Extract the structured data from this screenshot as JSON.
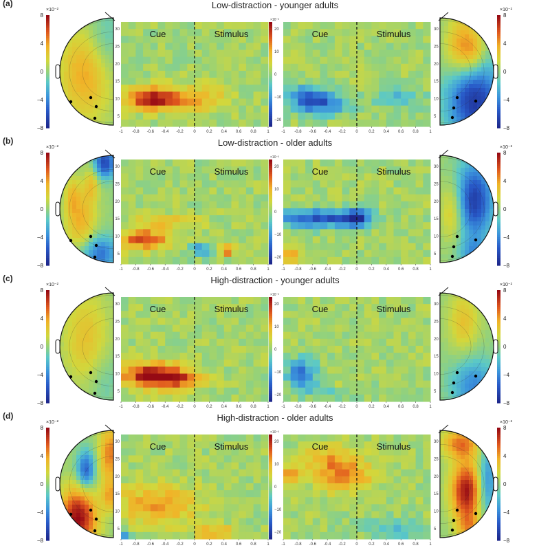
{
  "chart_data": [
    {
      "type": "heatmap",
      "panel_label": "(a)",
      "title": "Low-distraction - younger adults",
      "scalp_colorbar": {
        "ticks": [
          "8",
          "4",
          "0",
          "−4",
          "−8"
        ],
        "multiplier": "×10⁻²"
      },
      "tf_colorbar": {
        "ticks": [
          "20",
          "10",
          "0",
          "−10",
          "−20"
        ],
        "multiplier": "×10⁻³"
      },
      "tf_plots": [
        {
          "phase_labels": [
            "Cue",
            "Stimulus"
          ],
          "pattern": "alpha_increase"
        },
        {
          "phase_labels": [
            "Cue",
            "Stimulus"
          ],
          "pattern": "alpha_decrease"
        }
      ],
      "scalp_left": "posterior_left_negative",
      "scalp_right": "posterior_right_negative"
    },
    {
      "type": "heatmap",
      "panel_label": "(b)",
      "title": "Low-distraction - older adults",
      "scalp_colorbar": {
        "ticks": [
          "8",
          "4",
          "0",
          "−4",
          "−8"
        ],
        "multiplier": "×10⁻²"
      },
      "tf_colorbar": {
        "ticks": [
          "20",
          "10",
          "0",
          "−10",
          "−20"
        ],
        "multiplier": "×10⁻³"
      },
      "tf_plots": [
        {
          "phase_labels": [
            "Cue",
            "Stimulus"
          ],
          "pattern": "mixed_positive"
        },
        {
          "phase_labels": [
            "Cue",
            "Stimulus"
          ],
          "pattern": "mixed_negative"
        }
      ],
      "scalp_left": "mixed_left",
      "scalp_right": "mixed_right"
    },
    {
      "type": "heatmap",
      "panel_label": "(c)",
      "title": "High-distraction - younger adults",
      "scalp_colorbar": {
        "ticks": [
          "8",
          "4",
          "0",
          "−4",
          "−8"
        ],
        "multiplier": "×10⁻²"
      },
      "tf_colorbar": {
        "ticks": [
          "20",
          "10",
          "0",
          "−10",
          "−20"
        ],
        "multiplier": "×10⁻³"
      },
      "tf_plots": [
        {
          "phase_labels": [
            "Cue",
            "Stimulus"
          ],
          "pattern": "alpha_increase_strong"
        },
        {
          "phase_labels": [
            "Cue",
            "Stimulus"
          ],
          "pattern": "alpha_decrease_weak"
        }
      ],
      "scalp_left": "posterior_left_mild",
      "scalp_right": "posterior_right_mild"
    },
    {
      "type": "heatmap",
      "panel_label": "(d)",
      "title": "High-distraction - older adults",
      "scalp_colorbar": {
        "ticks": [
          "8",
          "4",
          "0",
          "−4",
          "−8"
        ],
        "multiplier": "×10⁻²"
      },
      "tf_colorbar": {
        "ticks": [
          "20",
          "10",
          "0",
          "−10",
          "−20"
        ],
        "multiplier": "×10⁻³"
      },
      "tf_plots": [
        {
          "phase_labels": [
            "Cue",
            "Stimulus"
          ],
          "pattern": "mixed_warm"
        },
        {
          "phase_labels": [
            "Cue",
            "Stimulus"
          ],
          "pattern": "mixed_warm2"
        }
      ],
      "scalp_left": "strong_left",
      "scalp_right": "strong_right"
    }
  ],
  "shared_axes": {
    "x_ticks": [
      "-1",
      "-0.8",
      "-0.6",
      "-0.4",
      "-0.2",
      "0",
      "0.2",
      "0.4",
      "0.6",
      "0.8",
      "1"
    ],
    "y_ticks": [
      "30",
      "25",
      "20",
      "15",
      "10",
      "5"
    ],
    "x_range": [
      -1,
      1
    ],
    "y_range": [
      2,
      32
    ]
  }
}
